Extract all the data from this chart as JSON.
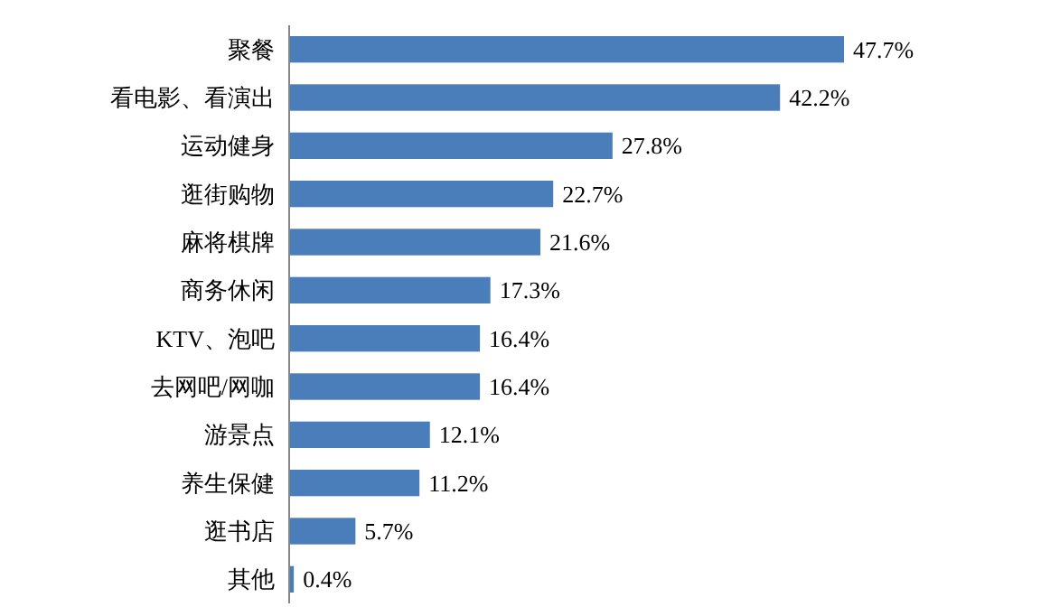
{
  "chart_data": {
    "type": "bar",
    "orientation": "horizontal",
    "categories": [
      "聚餐",
      "看电影、看演出",
      "运动健身",
      "逛街购物",
      "麻将棋牌",
      "商务休闲",
      "KTV、泡吧",
      "去网吧/网咖",
      "游景点",
      "养生保健",
      "逛书店",
      "其他"
    ],
    "values": [
      47.7,
      42.2,
      27.8,
      22.7,
      21.6,
      17.3,
      16.4,
      16.4,
      12.1,
      11.2,
      5.7,
      0.4
    ],
    "color": "#4a7ebb",
    "data_labels": true,
    "value_labels": [
      "47.7%",
      "42.2%",
      "27.8%",
      "22.7%",
      "21.6%",
      "17.3%",
      "16.4%",
      "16.4%",
      "12.1%",
      "11.2%",
      "5.7%",
      "0.4%"
    ]
  }
}
